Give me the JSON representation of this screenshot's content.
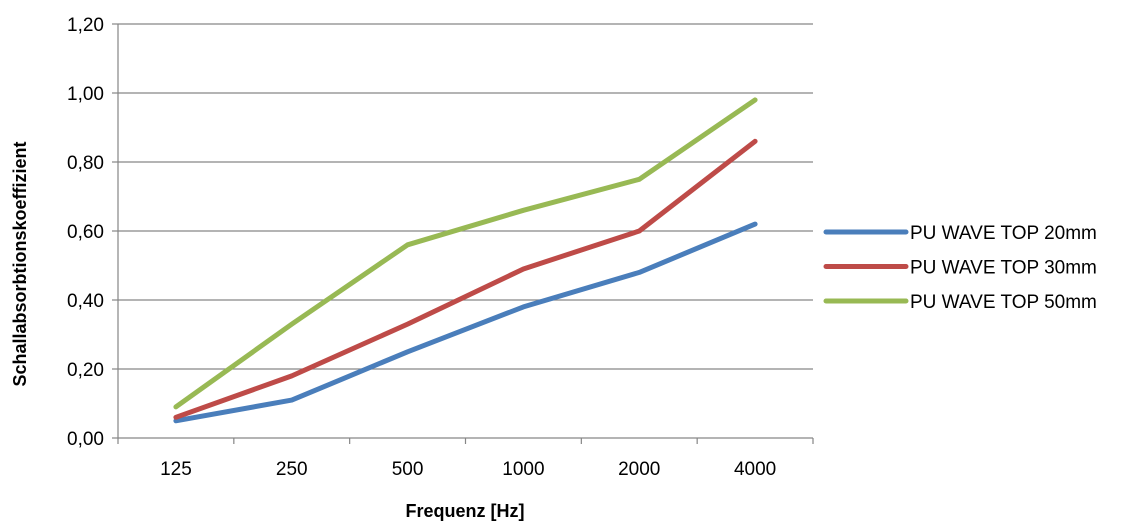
{
  "chart_data": {
    "type": "line",
    "categories": [
      "125",
      "250",
      "500",
      "1000",
      "2000",
      "4000"
    ],
    "series": [
      {
        "name": "PU WAVE TOP 20mm",
        "color": "#4a7ebb",
        "values": [
          0.05,
          0.11,
          0.25,
          0.38,
          0.48,
          0.62
        ]
      },
      {
        "name": "PU WAVE TOP 30mm",
        "color": "#be4b48",
        "values": [
          0.06,
          0.18,
          0.33,
          0.49,
          0.6,
          0.86
        ]
      },
      {
        "name": "PU WAVE TOP 50mm",
        "color": "#98b954",
        "values": [
          0.09,
          0.33,
          0.56,
          0.66,
          0.75,
          0.98
        ]
      }
    ],
    "xlabel": "Frequenz [Hz]",
    "ylabel": "Schallabsorbtionskoeffizient",
    "ylim": [
      0,
      1.2
    ],
    "yticks": [
      0,
      0.2,
      0.4,
      0.6,
      0.8,
      1.0,
      1.2
    ],
    "ytick_labels": [
      "0,00",
      "0,20",
      "0,40",
      "0,60",
      "0,80",
      "1,00",
      "1,20"
    ],
    "grid": "horizontal",
    "legend_position": "right",
    "gridline_color": "#868686",
    "axis_color": "#868686"
  }
}
